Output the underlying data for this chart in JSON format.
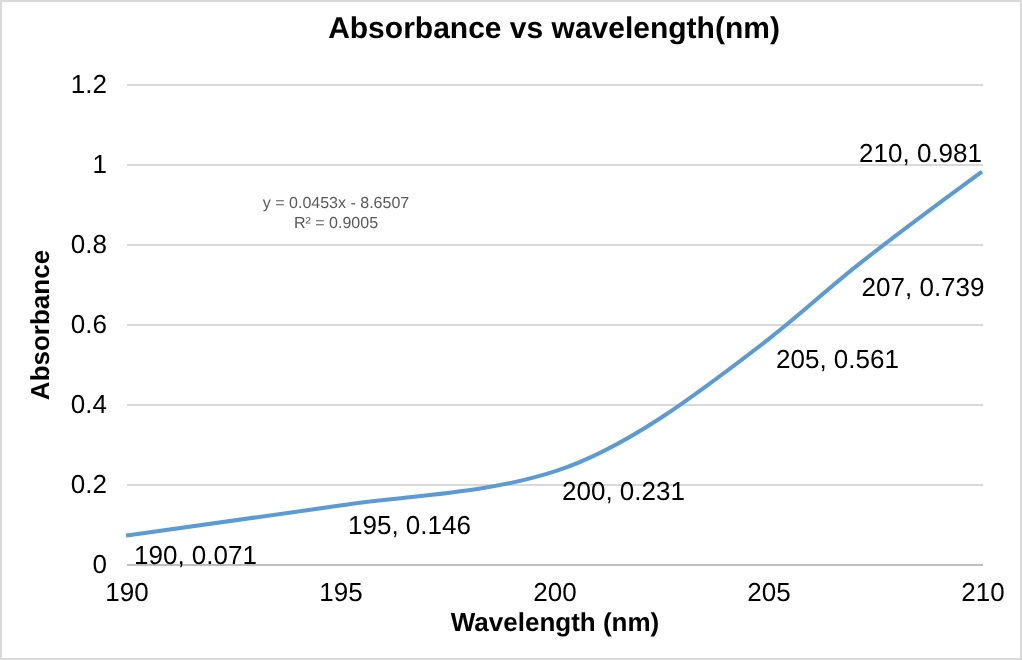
{
  "chart_data": {
    "type": "line",
    "title": "Absorbance vs wavelength(nm)",
    "xlabel": "Wavelength (nm)",
    "ylabel": "Absorbance",
    "x": [
      190,
      195,
      200,
      205,
      207,
      210
    ],
    "series": [
      {
        "color": "#5b9bd5",
        "values": [
          0.071,
          0.146,
          0.231,
          0.561,
          0.739,
          0.981
        ],
        "value_labels": [
          "190, 0.071",
          "195, 0.146",
          "200, 0.231",
          "205, 0.561",
          "207, 0.739",
          "210, 0.981"
        ]
      }
    ],
    "xlim": [
      190,
      210
    ],
    "xticks": [
      190,
      195,
      200,
      205,
      210
    ],
    "ylim": [
      0,
      1.2
    ],
    "yticks": [
      0,
      0.2,
      0.4,
      0.6,
      0.8,
      1,
      1.2
    ],
    "grid": "y",
    "marker": "none",
    "line_style": "solid",
    "annotations": [
      "y = 0.0453x - 8.6507",
      "R² = 0.9005"
    ]
  }
}
